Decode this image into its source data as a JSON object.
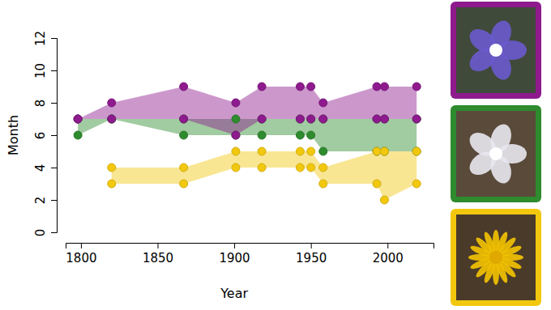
{
  "chart_data": {
    "type": "area_range",
    "x_label": "Year",
    "y_label": "Month",
    "x": [
      1798,
      1820,
      1867,
      1901,
      1918,
      1943,
      1950,
      1958,
      1993,
      1998,
      2019
    ],
    "series": [
      {
        "color": "#2e8b2e",
        "low": [
          6,
          7,
          6,
          6,
          6,
          6,
          6,
          5,
          5,
          5,
          5
        ],
        "high": [
          7,
          7,
          7,
          7,
          7,
          7,
          7,
          7,
          7,
          7,
          7
        ]
      },
      {
        "color": "#8e1a8e",
        "low": [
          7,
          7,
          7,
          6,
          7,
          7,
          7,
          7,
          7,
          7,
          7
        ],
        "high": [
          7,
          8,
          9,
          8,
          9,
          9,
          9,
          8,
          9,
          9,
          9
        ]
      },
      {
        "color": "#f2c80f",
        "low": [
          null,
          3,
          3,
          4,
          4,
          4,
          4,
          3,
          3,
          2,
          3
        ],
        "high": [
          null,
          4,
          4,
          5,
          5,
          5,
          5,
          4,
          5,
          5,
          5
        ]
      }
    ],
    "xlim": [
      1790,
      2030
    ],
    "ylim": [
      0,
      12
    ],
    "xticks": [
      1800,
      1850,
      1900,
      1950,
      2000
    ],
    "yticks": [
      0,
      2,
      4,
      6,
      8,
      10,
      12
    ],
    "grid": false
  }
}
